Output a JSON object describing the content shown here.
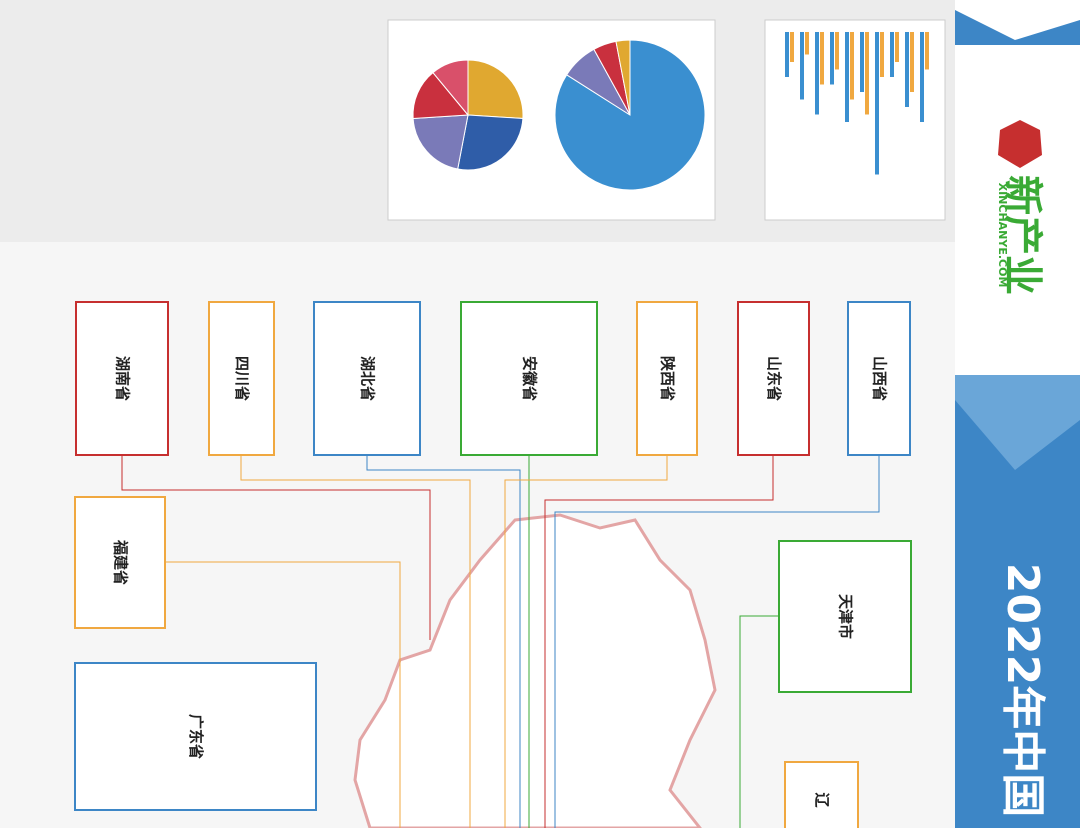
{
  "logo": {
    "name": "新产业",
    "url": "XINCHANYE.COM"
  },
  "title": "2022年中国",
  "provinces": [
    {
      "name": "湖南省"
    },
    {
      "name": "四川省"
    },
    {
      "name": "湖北省"
    },
    {
      "name": "安徽省"
    },
    {
      "name": "陕西省"
    },
    {
      "name": "山东省"
    },
    {
      "name": "山西省"
    },
    {
      "name": "福建省"
    },
    {
      "name": "天津市"
    },
    {
      "name": "广东省"
    },
    {
      "name": "辽"
    }
  ],
  "pie_small": {
    "type": "pie",
    "values": [
      26,
      27,
      21,
      15,
      11
    ],
    "colors": [
      "#e0a830",
      "#2f5da8",
      "#7a7ab8",
      "#c9303e",
      "#d9506a"
    ]
  },
  "pie_large": {
    "type": "pie",
    "values": [
      84,
      8,
      5,
      3
    ],
    "colors": [
      "#3a8fd0",
      "#7a7ab8",
      "#c9303e",
      "#e0a830"
    ]
  },
  "bar_chart": {
    "type": "bar",
    "ylim": [
      0,
      100
    ],
    "series": [
      {
        "color": "#3a8fd0",
        "values": [
          30,
          45,
          55,
          35,
          60,
          40,
          95,
          30,
          50,
          60
        ]
      },
      {
        "color": "#f0a840",
        "values": [
          20,
          15,
          35,
          25,
          45,
          55,
          30,
          20,
          40,
          25
        ]
      }
    ]
  }
}
